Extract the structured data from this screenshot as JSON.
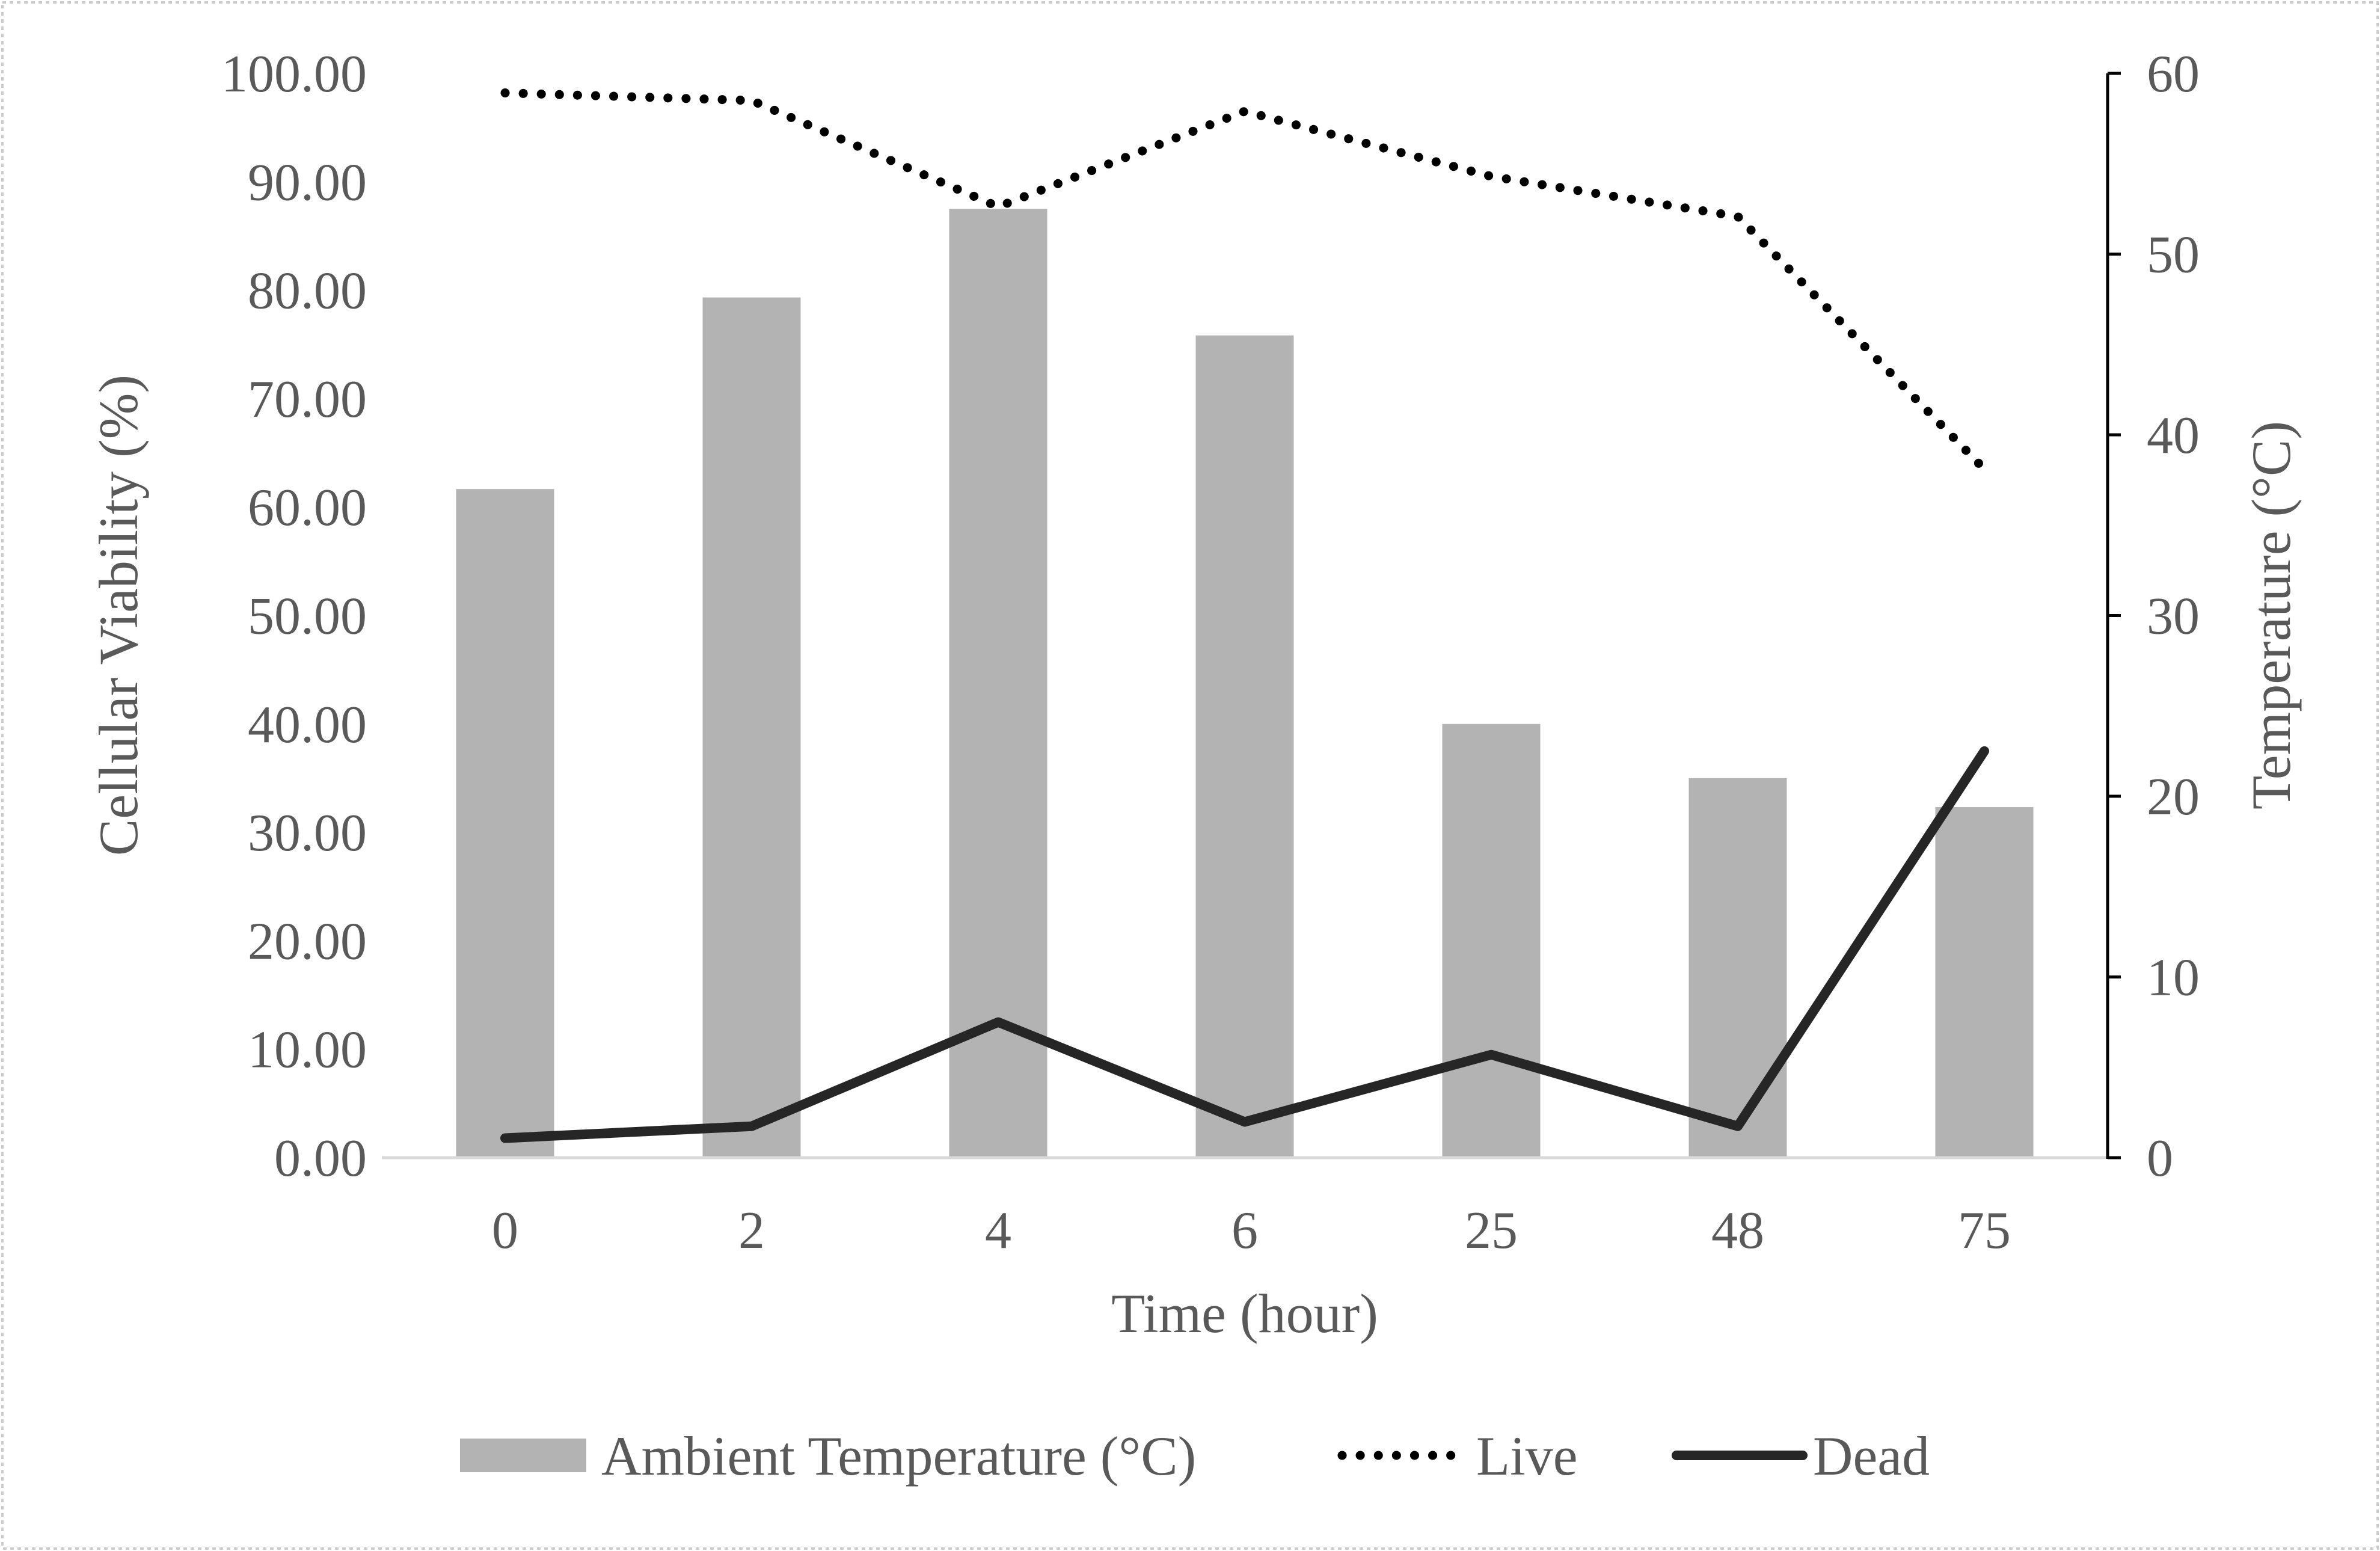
{
  "chart_data": {
    "type": "bar+line",
    "categories": [
      "0",
      "2",
      "4",
      "6",
      "25",
      "48",
      "75"
    ],
    "xlabel": "Time (hour)",
    "ylabel_left": "Cellular Viability (%)",
    "ylabel_right": "Temperature (°C)",
    "ylim_left": [
      0,
      100
    ],
    "ylim_right": [
      0,
      60
    ],
    "yticks_left": [
      "0.00",
      "10.00",
      "20.00",
      "30.00",
      "40.00",
      "50.00",
      "60.00",
      "70.00",
      "80.00",
      "90.00",
      "100.00"
    ],
    "yticks_right": [
      "0",
      "10",
      "20",
      "30",
      "40",
      "50",
      "60"
    ],
    "series": [
      {
        "name": "Ambient Temperature (°C)",
        "type": "bar",
        "axis": "right",
        "color": "#b3b3b3",
        "values": [
          37,
          47.6,
          52.5,
          45.5,
          24,
          21,
          19.4
        ]
      },
      {
        "name": "Live",
        "type": "line",
        "style": "dotted",
        "axis": "left",
        "color": "#000000",
        "values": [
          98.2,
          97.5,
          87.7,
          96.5,
          90.5,
          86.8,
          63.5
        ]
      },
      {
        "name": "Dead",
        "type": "line",
        "style": "solid",
        "axis": "left",
        "color": "#262626",
        "values": [
          1.8,
          2.9,
          12.5,
          3.3,
          9.5,
          2.9,
          37.5
        ]
      }
    ],
    "legend_position": "bottom-center",
    "grid": false
  }
}
